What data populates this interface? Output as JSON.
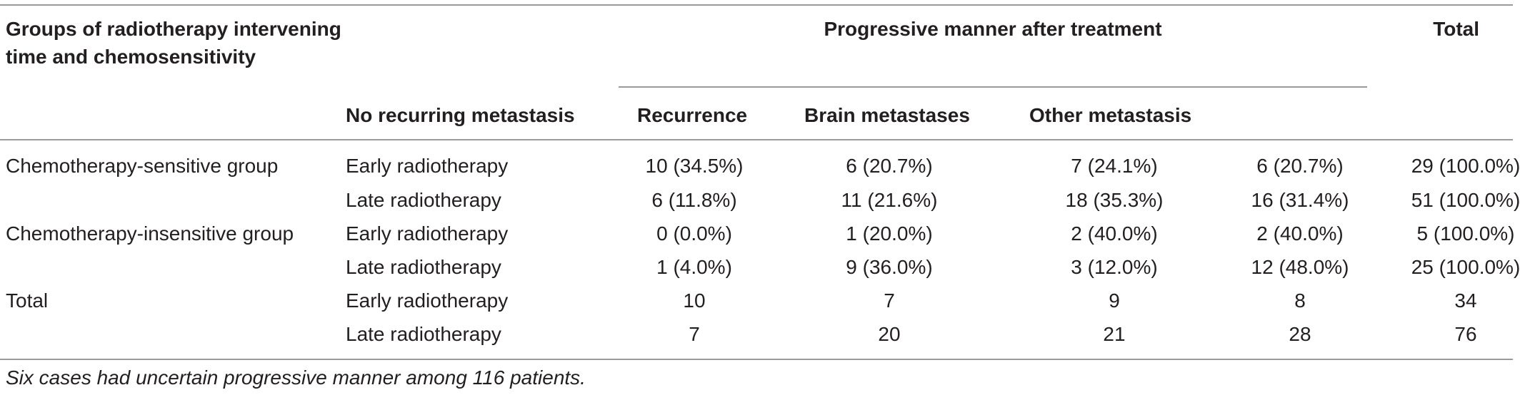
{
  "header": {
    "group_col": "Groups of radiotherapy intervening time and chemosensitivity",
    "group_col_line1": "Groups of radiotherapy intervening",
    "group_col_line2": "time and chemosensitivity",
    "span_title": "Progressive manner after treatment",
    "total": "Total",
    "sub": [
      "No recurring metastasis",
      "Recurrence",
      "Brain metastases",
      "Other metastasis"
    ]
  },
  "rows": [
    {
      "group": "Chemotherapy-sensitive group",
      "timing": "Early radiotherapy",
      "values": [
        "10 (34.5%)",
        "6 (20.7%)",
        "7 (24.1%)",
        "6 (20.7%)",
        "29 (100.0%)"
      ]
    },
    {
      "group": "",
      "timing": "Late radiotherapy",
      "values": [
        "6 (11.8%)",
        "11 (21.6%)",
        "18 (35.3%)",
        "16 (31.4%)",
        "51 (100.0%)"
      ]
    },
    {
      "group": "Chemotherapy-insensitive group",
      "timing": "Early radiotherapy",
      "values": [
        "0 (0.0%)",
        "1 (20.0%)",
        "2 (40.0%)",
        "2 (40.0%)",
        "5 (100.0%)"
      ]
    },
    {
      "group": "",
      "timing": "Late radiotherapy",
      "values": [
        "1 (4.0%)",
        "9 (36.0%)",
        "3 (12.0%)",
        "12 (48.0%)",
        "25 (100.0%)"
      ]
    },
    {
      "group": "Total",
      "timing": "Early radiotherapy",
      "values": [
        "10",
        "7",
        "9",
        "8",
        "34"
      ]
    },
    {
      "group": "",
      "timing": "Late radiotherapy",
      "values": [
        "7",
        "20",
        "21",
        "28",
        "76"
      ]
    }
  ],
  "footnote": "Six cases had uncertain progressive manner among 116 patients."
}
